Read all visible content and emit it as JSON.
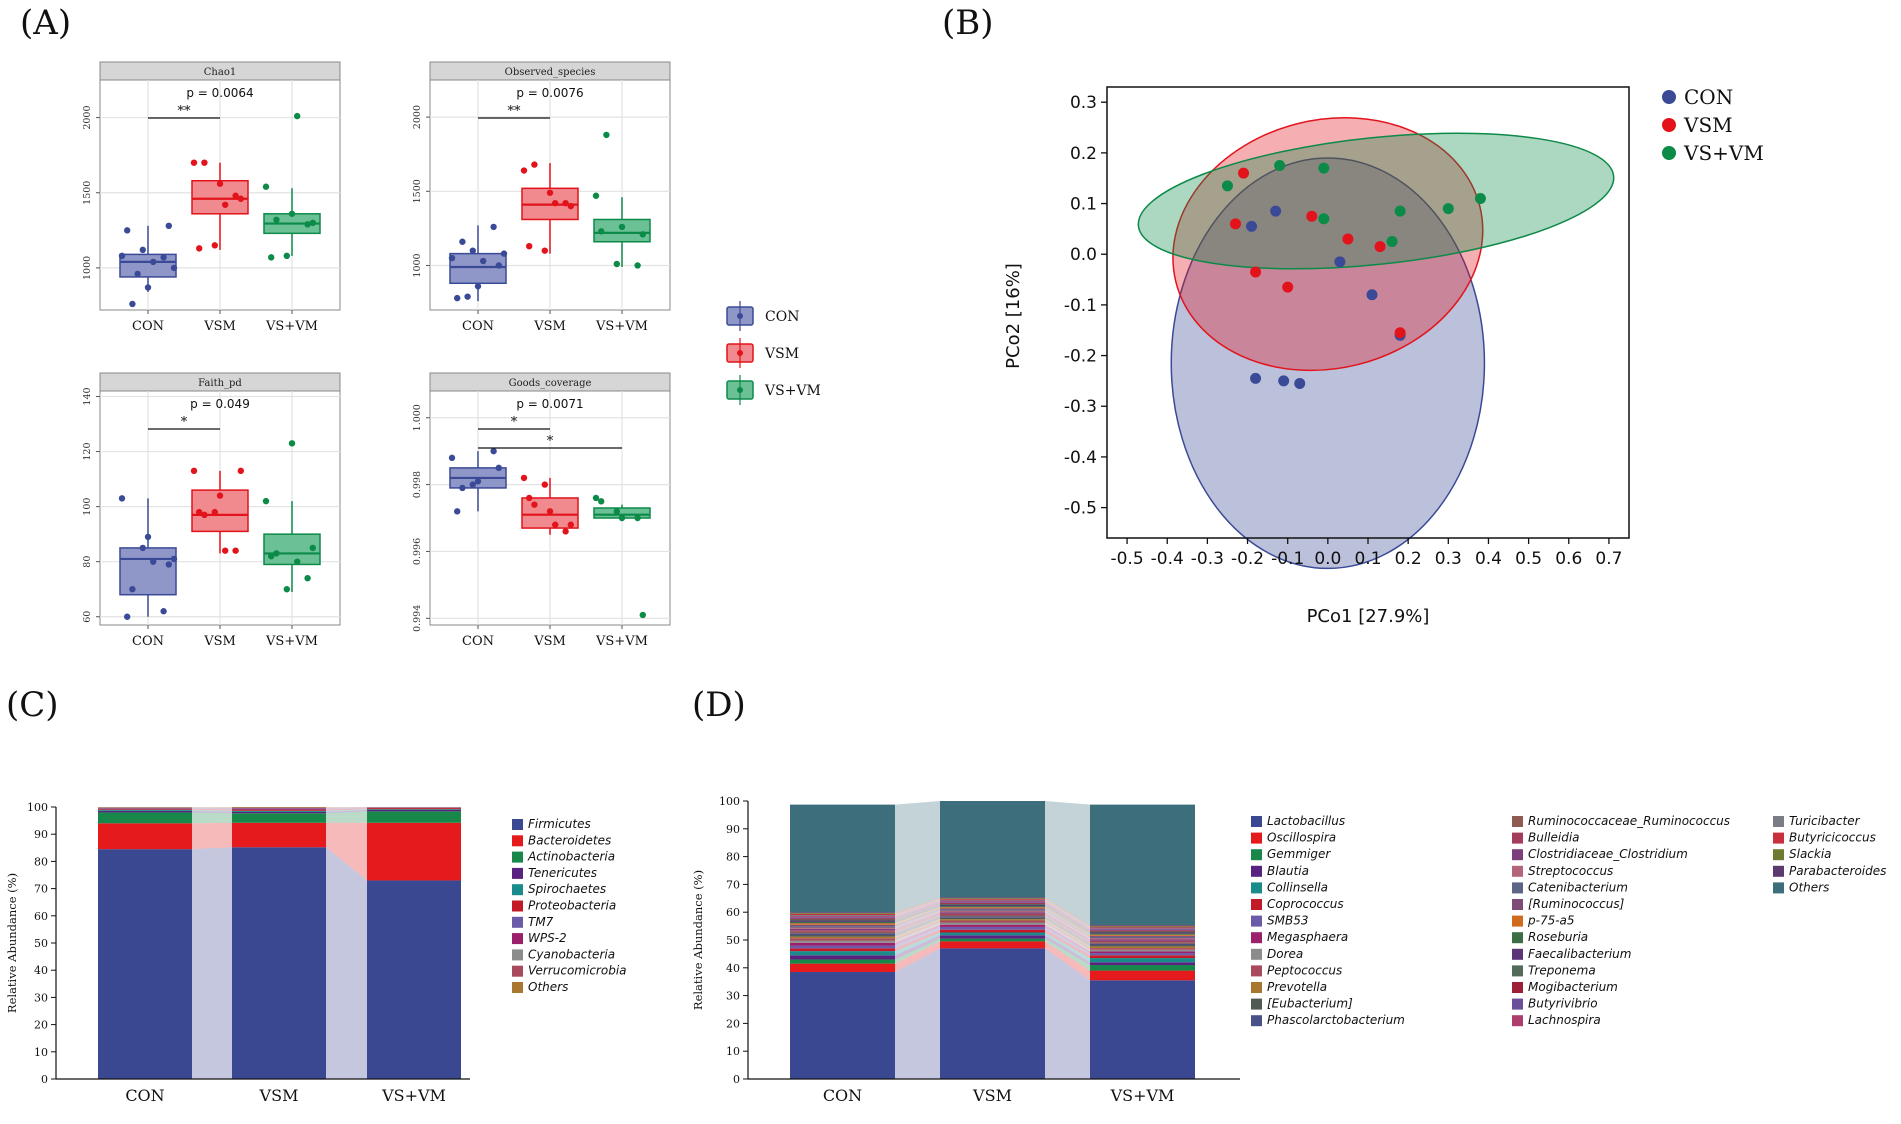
{
  "panel_labels": [
    "(A)",
    "(B)",
    "(C)",
    "(D)"
  ],
  "groups": [
    "CON",
    "VSM",
    "VS+VM"
  ],
  "colors": {
    "CON": "#3b4a96",
    "VSM": "#e2131b",
    "VS+VM": "#0c8a48",
    "CON_fill": "#8f96c8",
    "VSM_fill": "#f08a8e",
    "VSVM_fill": "#6cc096",
    "strip": "#d6d6d6",
    "grid": "#e3e3e3"
  },
  "chart_data": [
    {
      "type": "box",
      "id": "chao1",
      "title": "Chao1",
      "stat": "p = 0.0064",
      "ylim": [
        720,
        2250
      ],
      "yticks": [
        1000,
        1500,
        2000
      ],
      "xlabels": [
        "CON",
        "VSM",
        "VS+VM"
      ],
      "sig": [
        {
          "from": 0,
          "to": 1,
          "label": "**",
          "level": 0
        }
      ],
      "boxes": [
        {
          "group": "CON",
          "q1": 940,
          "median": 1040,
          "q3": 1090,
          "lo": 840,
          "hi": 1280
        },
        {
          "group": "VSM",
          "q1": 1360,
          "median": 1460,
          "q3": 1580,
          "lo": 1120,
          "hi": 1700
        },
        {
          "group": "VS+VM",
          "q1": 1230,
          "median": 1295,
          "q3": 1360,
          "lo": 1080,
          "hi": 1530
        }
      ],
      "points": [
        [
          1080,
          1120,
          1070,
          1250,
          870,
          1280,
          760,
          1040,
          1000,
          960
        ],
        [
          1700,
          1150,
          1480,
          1130,
          1560,
          1460,
          1700,
          1420
        ],
        [
          1540,
          1080,
          1290,
          1070,
          1360,
          1300,
          1320,
          2010
        ]
      ]
    },
    {
      "type": "box",
      "id": "observed_species",
      "title": "Observed_species",
      "stat": "p = 0.0076",
      "ylim": [
        700,
        2250
      ],
      "yticks": [
        1000,
        1500,
        2000
      ],
      "xlabels": [
        "CON",
        "VSM",
        "VS+VM"
      ],
      "sig": [
        {
          "from": 0,
          "to": 1,
          "label": "**",
          "level": 0
        }
      ],
      "boxes": [
        {
          "group": "CON",
          "q1": 880,
          "median": 990,
          "q3": 1080,
          "lo": 760,
          "hi": 1270
        },
        {
          "group": "VSM",
          "q1": 1310,
          "median": 1410,
          "q3": 1520,
          "lo": 1080,
          "hi": 1690
        },
        {
          "group": "VS+VM",
          "q1": 1160,
          "median": 1220,
          "q3": 1310,
          "lo": 990,
          "hi": 1460
        }
      ],
      "points": [
        [
          1050,
          1100,
          1260,
          780,
          860,
          1000,
          1160,
          1030,
          1080,
          790
        ],
        [
          1640,
          1100,
          1420,
          1130,
          1490,
          1400,
          1680,
          1420
        ],
        [
          1470,
          1010,
          1000,
          1230,
          1260,
          1210,
          1880
        ]
      ]
    },
    {
      "type": "box",
      "id": "faith_pd",
      "title": "Faith_pd",
      "stat": "p = 0.049",
      "ylim": [
        57,
        142
      ],
      "yticks": [
        60,
        80,
        100,
        120,
        140
      ],
      "xlabels": [
        "CON",
        "VSM",
        "VS+VM"
      ],
      "sig": [
        {
          "from": 0,
          "to": 1,
          "label": "*",
          "level": 0
        }
      ],
      "boxes": [
        {
          "group": "CON",
          "q1": 68,
          "median": 81,
          "q3": 85,
          "lo": 60,
          "hi": 103
        },
        {
          "group": "VSM",
          "q1": 91,
          "median": 97,
          "q3": 106,
          "lo": 83,
          "hi": 113
        },
        {
          "group": "VS+VM",
          "q1": 79,
          "median": 83,
          "q3": 90,
          "lo": 69,
          "hi": 102
        }
      ],
      "points": [
        [
          103,
          85,
          62,
          60,
          89,
          79,
          70,
          80,
          81
        ],
        [
          113,
          98,
          84,
          98,
          104,
          113,
          97,
          84
        ],
        [
          102,
          70,
          74,
          82,
          123,
          85,
          83,
          80
        ]
      ]
    },
    {
      "type": "box",
      "id": "goods_coverage",
      "title": "Goods_coverage",
      "stat": "p = 0.0071",
      "ylim": [
        0.9938,
        1.0008
      ],
      "yticks": [
        0.994,
        0.996,
        0.998,
        1.0
      ],
      "yticklabels": [
        "0.994",
        "0.996",
        "0.998",
        "1.000"
      ],
      "xlabels": [
        "CON",
        "VSM",
        "VS+VM"
      ],
      "sig": [
        {
          "from": 0,
          "to": 1,
          "label": "*",
          "level": 0
        },
        {
          "from": 0,
          "to": 2,
          "label": "*",
          "level": 1
        }
      ],
      "boxes": [
        {
          "group": "CON",
          "q1": 0.9979,
          "median": 0.9982,
          "q3": 0.9985,
          "lo": 0.9972,
          "hi": 0.999
        },
        {
          "group": "VSM",
          "q1": 0.9967,
          "median": 0.9971,
          "q3": 0.9976,
          "lo": 0.9965,
          "hi": 0.9982
        },
        {
          "group": "VS+VM",
          "q1": 0.997,
          "median": 0.9971,
          "q3": 0.9973,
          "lo": 0.997,
          "hi": 0.9974
        }
      ],
      "points": [
        [
          0.9988,
          0.998,
          0.999,
          0.9972,
          0.9981,
          0.9985,
          0.9979
        ],
        [
          0.9982,
          0.998,
          0.9966,
          0.9976,
          0.9972,
          0.9968,
          0.9974,
          0.9968
        ],
        [
          0.9976,
          0.9972,
          0.997,
          0.9975,
          0.997,
          0.9941
        ]
      ]
    },
    {
      "type": "scatter",
      "id": "pcoa",
      "xlabel": "PCo1 [27.9%]",
      "ylabel": "PCo2 [16%]",
      "xlim": [
        -0.55,
        0.75
      ],
      "ylim": [
        -0.56,
        0.33
      ],
      "xticks": [
        -0.5,
        -0.4,
        -0.3,
        -0.2,
        -0.1,
        0,
        0.1,
        0.2,
        0.3,
        0.4,
        0.5,
        0.6,
        0.7
      ],
      "xticklabels": [
        "-0.5",
        "-0.4",
        "-0.3",
        "-0.2",
        "-0.1",
        "0.0",
        "0.1",
        "0.2",
        "0.3",
        "0.4",
        "0.5",
        "0.6",
        "0.7"
      ],
      "yticks": [
        0.3,
        0.2,
        0.1,
        0,
        -0.1,
        -0.2,
        -0.3,
        -0.4,
        -0.5
      ],
      "yticklabels": [
        "0.3",
        "0.2",
        "0.1",
        "0.0",
        "-0.1",
        "-0.2",
        "-0.3",
        "-0.4",
        "-0.5"
      ],
      "legend": [
        "CON",
        "VSM",
        "VS+VM"
      ],
      "ellipses": [
        {
          "group": "CON",
          "cx": 0.0,
          "cy": -0.215,
          "rx": 0.39,
          "ry": 0.405,
          "rot": 0
        },
        {
          "group": "VSM",
          "cx": 0.0,
          "cy": 0.02,
          "rx": 0.39,
          "ry": 0.245,
          "rot": -14
        },
        {
          "group": "VS+VM",
          "cx": 0.12,
          "cy": 0.105,
          "rx": 0.595,
          "ry": 0.125,
          "rot": -6
        }
      ],
      "series": [
        {
          "name": "CON",
          "x": [
            -0.13,
            -0.19,
            0.03,
            0.11,
            0.18,
            -0.18,
            -0.11,
            -0.07
          ],
          "y": [
            0.085,
            0.055,
            -0.015,
            -0.08,
            -0.16,
            -0.245,
            -0.25,
            -0.255
          ]
        },
        {
          "name": "VSM",
          "x": [
            -0.21,
            -0.23,
            -0.18,
            -0.1,
            -0.04,
            0.05,
            0.13,
            0.18
          ],
          "y": [
            0.16,
            0.06,
            -0.035,
            -0.065,
            0.075,
            0.03,
            0.015,
            -0.155
          ]
        },
        {
          "name": "VS+VM",
          "x": [
            -0.25,
            -0.12,
            -0.01,
            -0.01,
            0.16,
            0.18,
            0.3,
            0.38
          ],
          "y": [
            0.135,
            0.175,
            0.17,
            0.07,
            0.025,
            0.085,
            0.09,
            0.11
          ]
        }
      ]
    },
    {
      "type": "bar",
      "stacked": true,
      "id": "phylum",
      "ylabel": "Relative Abundance (%)",
      "ylim": [
        0,
        100
      ],
      "yticks": [
        0,
        10,
        20,
        30,
        40,
        50,
        60,
        70,
        80,
        90,
        100
      ],
      "categories": [
        "CON",
        "VSM",
        "VS+VM"
      ],
      "series": [
        {
          "name": "Firmicutes",
          "color": "#3a4791",
          "values": [
            84.5,
            85.2,
            73.0
          ]
        },
        {
          "name": "Bacteroidetes",
          "color": "#e41a1c",
          "values": [
            9.5,
            9.0,
            21.2
          ]
        },
        {
          "name": "Actinobacteria",
          "color": "#18874a",
          "values": [
            4.0,
            3.5,
            4.2
          ]
        },
        {
          "name": "Tenericutes",
          "color": "#5a2280",
          "values": [
            0.6,
            0.5,
            0.5
          ]
        },
        {
          "name": "Spirochaetes",
          "color": "#198b8a",
          "values": [
            0.4,
            0.4,
            0.3
          ]
        },
        {
          "name": "Proteobacteria",
          "color": "#c21a26",
          "values": [
            0.4,
            0.5,
            0.4
          ]
        },
        {
          "name": "TM7",
          "color": "#6a5aa7",
          "values": [
            0.2,
            0.3,
            0.1
          ]
        },
        {
          "name": "WPS-2",
          "color": "#9c1f6c",
          "values": [
            0.1,
            0.2,
            0.1
          ]
        },
        {
          "name": "Cyanobacteria",
          "color": "#8c8c8c",
          "values": [
            0.1,
            0.1,
            0.1
          ]
        },
        {
          "name": "Verrucomicrobia",
          "color": "#a8495d",
          "values": [
            0.1,
            0.1,
            0.05
          ]
        },
        {
          "name": "Others",
          "color": "#a9782e",
          "values": [
            0.1,
            0.2,
            0.05
          ]
        }
      ]
    },
    {
      "type": "bar",
      "stacked": true,
      "id": "genus",
      "ylabel": "Relative Abundance (%)",
      "ylim": [
        0,
        100
      ],
      "yticks": [
        0,
        10,
        20,
        30,
        40,
        50,
        60,
        70,
        80,
        90,
        100
      ],
      "categories": [
        "CON",
        "VSM",
        "VS+VM"
      ],
      "series": [
        {
          "name": "Lactobacillus",
          "color": "#3a4791",
          "values": [
            38.5,
            47.0,
            35.5
          ]
        },
        {
          "name": "Oscillospira",
          "color": "#e41a1c",
          "values": [
            3.0,
            2.5,
            3.5
          ]
        },
        {
          "name": "Gemmiger",
          "color": "#18874a",
          "values": [
            1.5,
            1.0,
            2.0
          ]
        },
        {
          "name": "Blautia",
          "color": "#5a2280",
          "values": [
            1.5,
            1.2,
            1.0
          ]
        },
        {
          "name": "Collinsella",
          "color": "#198b8a",
          "values": [
            1.5,
            1.0,
            1.5
          ]
        },
        {
          "name": "Coprococcus",
          "color": "#c21a26",
          "values": [
            1.0,
            1.0,
            1.0
          ]
        },
        {
          "name": "SMB53",
          "color": "#6a5aa7",
          "values": [
            1.0,
            1.0,
            0.8
          ]
        },
        {
          "name": "Megasphaera",
          "color": "#9c1f6c",
          "values": [
            1.0,
            0.8,
            0.6
          ]
        },
        {
          "name": "Dorea",
          "color": "#8c8c8c",
          "values": [
            0.8,
            0.8,
            0.6
          ]
        },
        {
          "name": "Peptococcus",
          "color": "#a8495d",
          "values": [
            0.8,
            0.7,
            0.6
          ]
        },
        {
          "name": "Prevotella",
          "color": "#a9782e",
          "values": [
            0.6,
            0.5,
            0.6
          ]
        },
        {
          "name": "[Eubacterium]",
          "color": "#4f5a55",
          "values": [
            0.6,
            0.5,
            0.5
          ]
        },
        {
          "name": "Phascolarctobacterium",
          "color": "#4a5188",
          "values": [
            0.6,
            0.5,
            0.5
          ]
        },
        {
          "name": "Ruminococcaceae_Ruminococcus",
          "color": "#8e5a52",
          "values": [
            0.6,
            0.5,
            0.5
          ]
        },
        {
          "name": "Bulleidia",
          "color": "#a23d5c",
          "values": [
            0.5,
            0.5,
            0.5
          ]
        },
        {
          "name": "Clostridiaceae_Clostridium",
          "color": "#7b3f7b",
          "values": [
            0.5,
            0.5,
            0.5
          ]
        },
        {
          "name": "Streptococcus",
          "color": "#b3657a",
          "values": [
            0.5,
            0.5,
            0.5
          ]
        },
        {
          "name": "Catenibacterium",
          "color": "#5d6486",
          "values": [
            0.5,
            0.5,
            0.4
          ]
        },
        {
          "name": "[Ruminococcus]",
          "color": "#7e4a78",
          "values": [
            0.5,
            0.4,
            0.4
          ]
        },
        {
          "name": "p-75-a5",
          "color": "#d26a1e",
          "values": [
            0.5,
            0.4,
            0.4
          ]
        },
        {
          "name": "Roseburia",
          "color": "#3a6e45",
          "values": [
            0.5,
            0.4,
            0.4
          ]
        },
        {
          "name": "Faecalibacterium",
          "color": "#5c3478",
          "values": [
            0.5,
            0.4,
            0.4
          ]
        },
        {
          "name": "Treponema",
          "color": "#526b5a",
          "values": [
            0.4,
            0.4,
            0.4
          ]
        },
        {
          "name": "Mogibacterium",
          "color": "#9e2036",
          "values": [
            0.4,
            0.4,
            0.4
          ]
        },
        {
          "name": "Butyrivibrio",
          "color": "#6b4f9b",
          "values": [
            0.4,
            0.4,
            0.4
          ]
        },
        {
          "name": "Lachnospira",
          "color": "#ad3f6e",
          "values": [
            0.4,
            0.4,
            0.3
          ]
        },
        {
          "name": "Turicibacter",
          "color": "#7a7d86",
          "values": [
            0.4,
            0.3,
            0.3
          ]
        },
        {
          "name": "Butyricicoccus",
          "color": "#c8303d",
          "values": [
            0.4,
            0.3,
            0.3
          ]
        },
        {
          "name": "Slackia",
          "color": "#6d7a30",
          "values": [
            0.3,
            0.3,
            0.3
          ]
        },
        {
          "name": "Parabacteroides",
          "color": "#5d3a6e",
          "values": [
            0.3,
            0.3,
            0.3
          ]
        },
        {
          "name": "Others",
          "color": "#3d6e7c",
          "values": [
            38.7,
            34.6,
            43.3
          ]
        }
      ]
    }
  ]
}
